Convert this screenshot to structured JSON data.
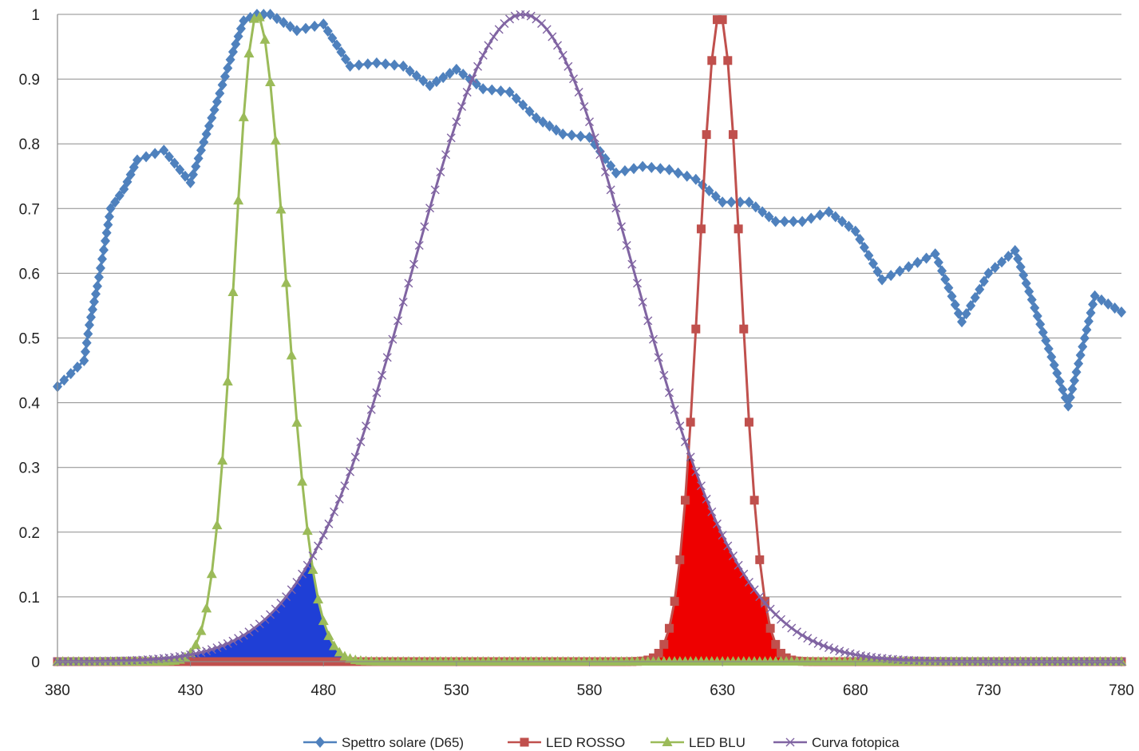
{
  "chart_data": {
    "type": "line",
    "title": "",
    "xlabel": "",
    "ylabel": "",
    "xlim": [
      380,
      780
    ],
    "ylim": [
      0,
      1
    ],
    "x_ticks": [
      "380",
      "430",
      "480",
      "530",
      "580",
      "630",
      "680",
      "730",
      "780"
    ],
    "y_ticks": [
      "0",
      "0.1",
      "0.2",
      "0.3",
      "0.4",
      "0.5",
      "0.6",
      "0.7",
      "0.8",
      "0.9",
      "1"
    ],
    "grid": "horizontal",
    "legend_position": "bottom",
    "series": [
      {
        "name": "Spettro solare (D65)",
        "color": "#4f81bd",
        "marker": "diamond",
        "x": [
          380,
          390,
          392,
          395,
          398,
          400,
          405,
          410,
          420,
          430,
          440,
          445,
          450,
          455,
          460,
          470,
          480,
          490,
          500,
          510,
          520,
          530,
          540,
          550,
          560,
          570,
          580,
          590,
          600,
          610,
          620,
          630,
          640,
          650,
          660,
          670,
          680,
          690,
          700,
          710,
          720,
          730,
          740,
          760,
          770,
          780
        ],
        "values": [
          0.425,
          0.465,
          0.52,
          0.58,
          0.65,
          0.7,
          0.73,
          0.775,
          0.79,
          0.74,
          0.865,
          0.93,
          0.99,
          1.0,
          1.0,
          0.975,
          0.985,
          0.92,
          0.925,
          0.92,
          0.89,
          0.915,
          0.885,
          0.88,
          0.84,
          0.815,
          0.81,
          0.755,
          0.765,
          0.76,
          0.745,
          0.71,
          0.71,
          0.68,
          0.68,
          0.695,
          0.665,
          0.59,
          0.61,
          0.63,
          0.525,
          0.6,
          0.635,
          0.395,
          0.565,
          0.54
        ]
      },
      {
        "name": "LED ROSSO",
        "color": "#c0504d",
        "marker": "square",
        "center": 629,
        "sigma": 7.8,
        "peak": 1.0,
        "x_range": [
          380,
          780
        ],
        "step": 2
      },
      {
        "name": "LED BLU",
        "color": "#9bbb59",
        "marker": "triangle",
        "center": 455,
        "sigma": 8.5,
        "tail_scale": 10,
        "peak": 1.0,
        "x_range": [
          380,
          780
        ],
        "step": 2
      },
      {
        "name": "Curva fotopica",
        "color": "#8064a2",
        "marker": "x",
        "center": 555,
        "sigma": 41.5,
        "peak": 1.0,
        "x_range": [
          380,
          780
        ],
        "step": 2
      }
    ],
    "shaded_areas": [
      {
        "name": "overlap LED BLU × Curva fotopica",
        "color": "#1f3fd6"
      },
      {
        "name": "overlap LED ROSSO × Curva fotopica",
        "color": "#ee0000"
      }
    ]
  }
}
